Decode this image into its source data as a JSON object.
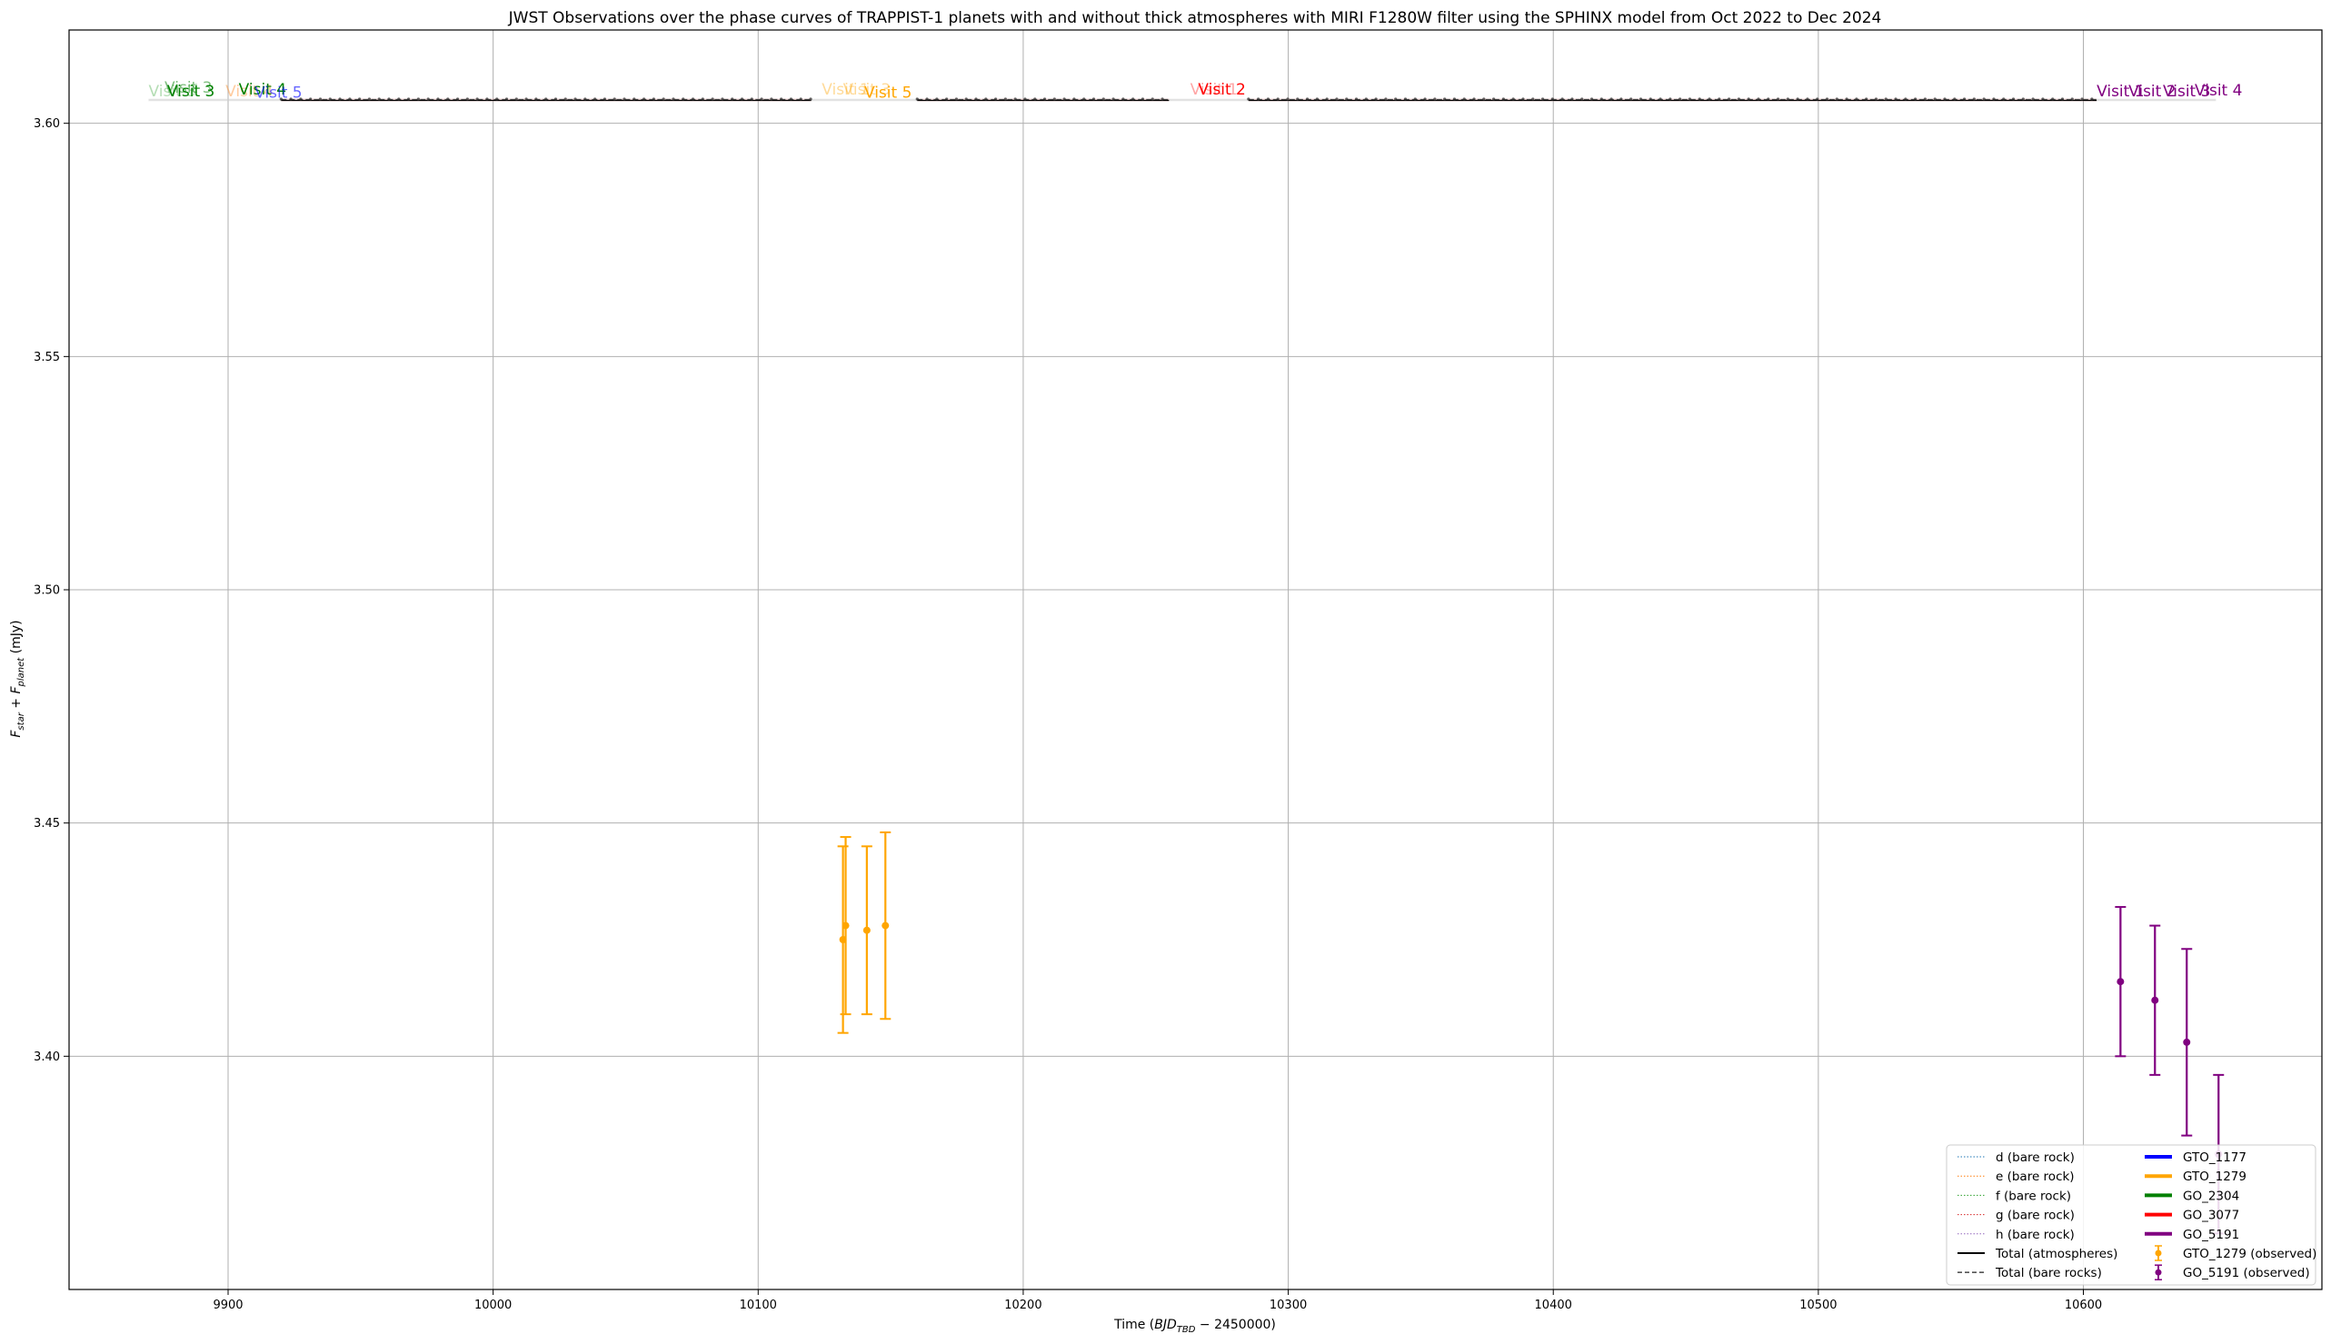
{
  "chart_data": {
    "type": "scatter",
    "title": "JWST Observations over the phase curves of TRAPPIST-1 planets with and without thick atmospheres with MIRI F1280W filter using the SPHINX model from Oct 2022 to Dec 2024",
    "xlabel_main": "Time (",
    "xlabel_math": "BJD",
    "xlabel_sub": "TBD",
    "xlabel_tail": " − 2450000)",
    "ylabel_f1": "F",
    "ylabel_s1": "star",
    "ylabel_plus": " + ",
    "ylabel_f2": "F",
    "ylabel_s2": "planet",
    "ylabel_unit": " (mJy)",
    "xlim": [
      9840,
      10690
    ],
    "ylim": [
      3.35,
      3.62
    ],
    "grid": true,
    "legend_position": "lower right",
    "x_ticks": [
      9900,
      10000,
      10100,
      10200,
      10300,
      10400,
      10500,
      10600
    ],
    "y_ticks": [
      3.4,
      3.45,
      3.5,
      3.55,
      3.6
    ],
    "x_tick_labels": [
      "9900",
      "10000",
      "10100",
      "10200",
      "10300",
      "10400",
      "10500",
      "10600"
    ],
    "y_tick_labels": [
      "3.40",
      "3.45",
      "3.50",
      "3.55",
      "3.60"
    ],
    "model_baseline": 3.605,
    "model_segments": [
      [
        9920,
        10120
      ],
      [
        10160,
        10255
      ],
      [
        10285,
        10605
      ]
    ],
    "model_gaps": [
      [
        9870,
        9920
      ],
      [
        10120,
        10160
      ],
      [
        10255,
        10285
      ],
      [
        10605,
        10650
      ]
    ],
    "series": [
      {
        "name": "d (bare rock)",
        "style": "dotted",
        "color": "#1f77b4"
      },
      {
        "name": "e (bare rock)",
        "style": "dotted",
        "color": "#ff7f0e"
      },
      {
        "name": "f (bare rock)",
        "style": "dotted",
        "color": "#2ca02c"
      },
      {
        "name": "g (bare rock)",
        "style": "dotted",
        "color": "#d62728"
      },
      {
        "name": "h (bare rock)",
        "style": "dotted",
        "color": "#9467bd"
      },
      {
        "name": "Total (atmospheres)",
        "style": "solid",
        "color": "#000000"
      },
      {
        "name": "Total (bare rocks)",
        "style": "dashed",
        "color": "#555555"
      },
      {
        "name": "GTO_1177",
        "style": "thick",
        "color": "#0000ff"
      },
      {
        "name": "GTO_1279",
        "style": "thick",
        "color": "#ffa500"
      },
      {
        "name": "GO_2304",
        "style": "thick",
        "color": "#008000"
      },
      {
        "name": "GO_3077",
        "style": "thick",
        "color": "#ff0000"
      },
      {
        "name": "GO_5191",
        "style": "thick",
        "color": "#800080"
      },
      {
        "name": "GTO_1279 (observed)",
        "style": "errorbar",
        "color": "#ffa500"
      },
      {
        "name": "GO_5191 (observed)",
        "style": "errorbar",
        "color": "#800080"
      }
    ],
    "observed": [
      {
        "program": "GTO_1279",
        "color": "#ffa500",
        "points": [
          {
            "x": 10132,
            "y": 3.425,
            "yerr": 0.02
          },
          {
            "x": 10133,
            "y": 3.428,
            "yerr": 0.019
          },
          {
            "x": 10141,
            "y": 3.427,
            "yerr": 0.018
          },
          {
            "x": 10148,
            "y": 3.428,
            "yerr": 0.02
          }
        ]
      },
      {
        "program": "GO_5191",
        "color": "#800080",
        "points": [
          {
            "x": 10614,
            "y": 3.416,
            "yerr": 0.016
          },
          {
            "x": 10627,
            "y": 3.412,
            "yerr": 0.016
          },
          {
            "x": 10639,
            "y": 3.403,
            "yerr": 0.02
          },
          {
            "x": 10651,
            "y": 3.379,
            "yerr": 0.017
          }
        ]
      }
    ],
    "annotations": [
      {
        "text": "Visit 3",
        "x": 9870,
        "y": 3.6058,
        "color": "#2ca02c",
        "alpha": 0.35
      },
      {
        "text": "Visit 3",
        "x": 9876,
        "y": 3.6066,
        "color": "#008000",
        "alpha": 0.5
      },
      {
        "text": "Visit 3",
        "x": 9877,
        "y": 3.6058,
        "color": "#008000",
        "alpha": 1
      },
      {
        "text": "Visit 4",
        "x": 9899,
        "y": 3.6058,
        "color": "#ff7f0e",
        "alpha": 0.4
      },
      {
        "text": "Visit 4",
        "x": 9904,
        "y": 3.6062,
        "color": "#008000",
        "alpha": 1
      },
      {
        "text": "Visit 5",
        "x": 9910,
        "y": 3.6055,
        "color": "#0000ff",
        "alpha": 0.6
      },
      {
        "text": "Visit 1",
        "x": 10124,
        "y": 3.6062,
        "color": "#ffa500",
        "alpha": 0.4
      },
      {
        "text": "Visit 3",
        "x": 10132,
        "y": 3.6062,
        "color": "#ffa500",
        "alpha": 0.4
      },
      {
        "text": "Visit 5",
        "x": 10140,
        "y": 3.6055,
        "color": "#ffa500",
        "alpha": 1
      },
      {
        "text": "Visit 1",
        "x": 10263,
        "y": 3.6062,
        "color": "#ff0000",
        "alpha": 0.35
      },
      {
        "text": "Visit 2",
        "x": 10266,
        "y": 3.6062,
        "color": "#ff0000",
        "alpha": 1
      },
      {
        "text": "Visit 1",
        "x": 10605,
        "y": 3.6058,
        "color": "#800080",
        "alpha": 1
      },
      {
        "text": "Visit 2",
        "x": 10617,
        "y": 3.6058,
        "color": "#800080",
        "alpha": 1
      },
      {
        "text": "Visit 3",
        "x": 10630,
        "y": 3.6058,
        "color": "#800080",
        "alpha": 1
      },
      {
        "text": "Visit 4",
        "x": 10642,
        "y": 3.606,
        "color": "#800080",
        "alpha": 1
      }
    ]
  }
}
